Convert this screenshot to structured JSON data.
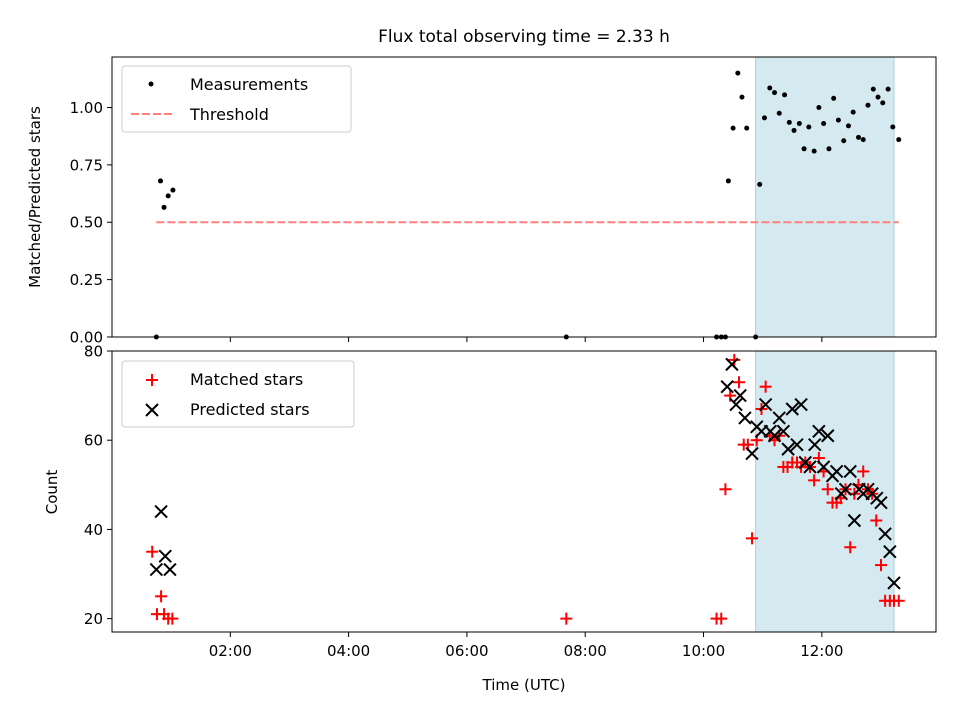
{
  "chart_data": [
    {
      "type": "scatter",
      "title": "Flux total observing time = 2.33 h",
      "xlabel": "",
      "ylabel": "Matched/Predicted stars",
      "x_unit": "hours UTC",
      "xlim": [
        0.0,
        13.93
      ],
      "ylim": [
        0.0,
        1.22
      ],
      "yticks": [
        0.0,
        0.25,
        0.5,
        0.75,
        1.0
      ],
      "ytick_labels": [
        "0.00",
        "0.25",
        "0.50",
        "0.75",
        "1.00"
      ],
      "highlight_span": {
        "x": [
          10.88,
          13.22
        ],
        "color": "#d4eaf0"
      },
      "legend_placement": "upper-left",
      "series": [
        {
          "name": "Measurements",
          "marker": "dot",
          "color": "#000000",
          "x": [
            0.75,
            0.82,
            0.88,
            0.95,
            1.03,
            7.68,
            10.22,
            10.3,
            10.37,
            10.42,
            10.5,
            10.58,
            10.65,
            10.73,
            10.88,
            10.95,
            11.03,
            11.12,
            11.2,
            11.28,
            11.37,
            11.45,
            11.53,
            11.62,
            11.7,
            11.78,
            11.87,
            11.95,
            12.03,
            12.12,
            12.2,
            12.28,
            12.37,
            12.45,
            12.53,
            12.62,
            12.7,
            12.78,
            12.87,
            12.95,
            13.03,
            13.12,
            13.2,
            13.3
          ],
          "y": [
            0.0,
            0.68,
            0.565,
            0.615,
            0.64,
            0.0,
            0.0,
            0.0,
            0.0,
            0.68,
            0.91,
            1.15,
            1.045,
            0.91,
            0.0,
            0.665,
            0.955,
            1.085,
            1.065,
            0.975,
            1.055,
            0.935,
            0.9,
            0.93,
            0.82,
            0.915,
            0.81,
            1.0,
            0.93,
            0.82,
            1.04,
            0.945,
            0.855,
            0.92,
            0.98,
            0.87,
            0.86,
            1.01,
            1.08,
            1.045,
            1.02,
            1.08,
            0.915,
            0.86
          ]
        },
        {
          "name": "Threshold",
          "marker": "dashed-line",
          "color": "#ff7f7f",
          "x": [
            0.75,
            13.3
          ],
          "y": [
            0.5,
            0.5
          ]
        }
      ]
    },
    {
      "type": "scatter",
      "title": "",
      "xlabel": "Time (UTC)",
      "ylabel": "Count",
      "x_unit": "hours UTC",
      "xlim": [
        0.0,
        13.93
      ],
      "ylim": [
        17.0,
        80.0
      ],
      "yticks": [
        20,
        40,
        60,
        80
      ],
      "xticks": [
        2,
        4,
        6,
        8,
        10,
        12
      ],
      "xtick_labels": [
        "02:00",
        "04:00",
        "06:00",
        "08:00",
        "10:00",
        "12:00"
      ],
      "highlight_span": {
        "x": [
          10.88,
          13.22
        ],
        "color": "#d4eaf0"
      },
      "legend_placement": "upper-left",
      "series": [
        {
          "name": "Matched stars",
          "marker": "plus",
          "color": "#ff0000",
          "x": [
            0.68,
            0.76,
            0.83,
            0.88,
            0.95,
            1.02,
            7.68,
            10.22,
            10.3,
            10.37,
            10.45,
            10.52,
            10.6,
            10.68,
            10.75,
            10.82,
            10.9,
            10.98,
            11.05,
            11.12,
            11.2,
            11.28,
            11.35,
            11.42,
            11.5,
            11.58,
            11.65,
            11.72,
            11.8,
            11.87,
            11.95,
            12.03,
            12.1,
            12.18,
            12.25,
            12.32,
            12.4,
            12.48,
            12.55,
            12.62,
            12.7,
            12.78,
            12.85,
            12.92,
            13.0,
            13.07,
            13.15,
            13.22,
            13.3
          ],
          "y": [
            35,
            21,
            25,
            21,
            20,
            20,
            20,
            20,
            20,
            49,
            70,
            78,
            73,
            59,
            59,
            38,
            60,
            67,
            72,
            61,
            60,
            61,
            54,
            54,
            55,
            55,
            54,
            55,
            54,
            51,
            56,
            53,
            49,
            46,
            46,
            47,
            49,
            36,
            48,
            50,
            53,
            49,
            48,
            42,
            32,
            24,
            24,
            24,
            24
          ]
        },
        {
          "name": "Predicted stars",
          "marker": "x",
          "color": "#000000",
          "x": [
            0.75,
            0.83,
            0.9,
            0.98,
            10.4,
            10.48,
            10.55,
            10.62,
            10.7,
            10.82,
            10.9,
            10.98,
            11.05,
            11.13,
            11.2,
            11.28,
            11.35,
            11.43,
            11.5,
            11.58,
            11.65,
            11.72,
            11.8,
            11.88,
            11.95,
            12.03,
            12.1,
            12.18,
            12.25,
            12.33,
            12.4,
            12.48,
            12.55,
            12.63,
            12.7,
            12.78,
            12.85,
            12.93,
            13.0,
            13.07,
            13.15,
            13.22
          ],
          "y": [
            31,
            44,
            34,
            31,
            72,
            77,
            68,
            70,
            65,
            57,
            63,
            62,
            68,
            62,
            61,
            65,
            62,
            58,
            67,
            59,
            68,
            55,
            54,
            59,
            62,
            54,
            61,
            52,
            53,
            48,
            49,
            53,
            42,
            49,
            48,
            49,
            48,
            47,
            46,
            39,
            35,
            28
          ]
        }
      ]
    }
  ]
}
